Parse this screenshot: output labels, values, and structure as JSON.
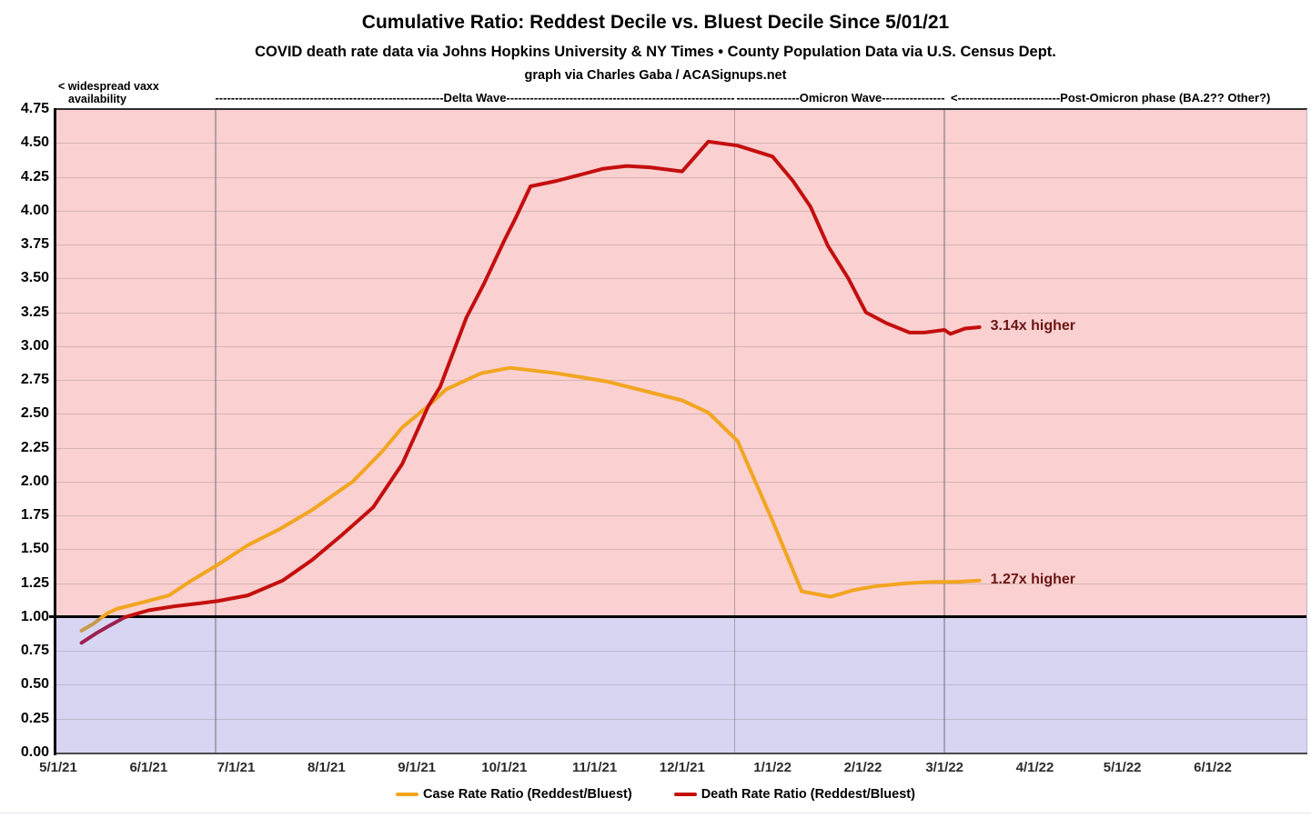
{
  "header": {
    "title": "Cumulative Ratio: Reddest Decile vs. Bluest Decile Since 5/01/21",
    "subtitle": "COVID death rate data via Johns Hopkins University & NY Times • County Population Data via U.S. Census Dept.",
    "credit": "graph via Charles Gaba / ACASignups.net"
  },
  "annotations": {
    "vaxx_line1": "< widespread vaxx",
    "vaxx_line2": "availability",
    "delta_wave": "<----------------------------------------------------------Delta Wave---------------------------------------------------------->",
    "omicron_wave": "<----------------Omicron Wave---------------->",
    "post_omicron": "<--------------------------Post-Omicron phase (BA.2?? Other?)"
  },
  "chart_data": {
    "type": "line",
    "title": "Cumulative Ratio: Reddest Decile vs. Bluest Decile Since 5/01/21",
    "x_range": [
      "5/1/21",
      "6/1/22"
    ],
    "y_range": [
      0,
      4.75
    ],
    "grid": true,
    "unity_value": 1.0,
    "x_ticks": [
      "5/1/21",
      "6/1/21",
      "7/1/21",
      "8/1/21",
      "9/1/21",
      "10/1/21",
      "11/1/21",
      "12/1/21",
      "1/1/22",
      "2/1/22",
      "3/1/22",
      "4/1/22",
      "5/1/22",
      "6/1/22"
    ],
    "y_ticks": [
      "0.00",
      "0.25",
      "0.50",
      "0.75",
      "1.00",
      "1.25",
      "1.50",
      "1.75",
      "2.00",
      "2.25",
      "2.50",
      "2.75",
      "3.00",
      "3.25",
      "3.50",
      "3.75",
      "4.00",
      "4.25",
      "4.50",
      "4.75"
    ],
    "bands": {
      "above_one_color": "#FAD0D0",
      "below_one_color": "#D8D5F2"
    },
    "phase_dividers": [
      "2021-06-24",
      "2021-12-19",
      "2022-03-01"
    ],
    "legend_position": "bottom",
    "series": [
      {
        "name": "Case Rate Ratio (Reddest/Bluest)",
        "color": "#F2A51F",
        "color_below_one": "#C89A4A",
        "end_label": "1.27x higher",
        "points": [
          [
            "2021-05-09",
            0.9
          ],
          [
            "2021-05-13",
            0.95
          ],
          [
            "2021-05-18",
            1.03
          ],
          [
            "2021-05-21",
            1.06
          ],
          [
            "2021-06-01",
            1.12
          ],
          [
            "2021-06-08",
            1.16
          ],
          [
            "2021-06-15",
            1.26
          ],
          [
            "2021-06-25",
            1.39
          ],
          [
            "2021-07-05",
            1.53
          ],
          [
            "2021-07-16",
            1.65
          ],
          [
            "2021-07-27",
            1.79
          ],
          [
            "2021-08-10",
            2.0
          ],
          [
            "2021-08-20",
            2.22
          ],
          [
            "2021-08-27",
            2.4
          ],
          [
            "2021-09-05",
            2.56
          ],
          [
            "2021-09-11",
            2.68
          ],
          [
            "2021-09-23",
            2.8
          ],
          [
            "2021-10-03",
            2.84
          ],
          [
            "2021-10-19",
            2.8
          ],
          [
            "2021-11-05",
            2.74
          ],
          [
            "2021-11-18",
            2.67
          ],
          [
            "2021-12-01",
            2.6
          ],
          [
            "2021-12-10",
            2.51
          ],
          [
            "2021-12-20",
            2.3
          ],
          [
            "2022-01-01",
            1.71
          ],
          [
            "2022-01-11",
            1.19
          ],
          [
            "2022-01-21",
            1.15
          ],
          [
            "2022-01-29",
            1.2
          ],
          [
            "2022-02-06",
            1.23
          ],
          [
            "2022-02-16",
            1.25
          ],
          [
            "2022-02-25",
            1.26
          ],
          [
            "2022-03-05",
            1.26
          ],
          [
            "2022-03-13",
            1.27
          ]
        ]
      },
      {
        "name": "Death Rate Ratio (Reddest/Bluest)",
        "color": "#C40E0E",
        "color_below_one": "#9C2050",
        "end_label": "3.14x higher",
        "points": [
          [
            "2021-05-09",
            0.81
          ],
          [
            "2021-05-14",
            0.88
          ],
          [
            "2021-05-18",
            0.93
          ],
          [
            "2021-05-24",
            1.0
          ],
          [
            "2021-06-01",
            1.05
          ],
          [
            "2021-06-10",
            1.08
          ],
          [
            "2021-06-18",
            1.1
          ],
          [
            "2021-06-25",
            1.12
          ],
          [
            "2021-07-05",
            1.16
          ],
          [
            "2021-07-17",
            1.27
          ],
          [
            "2021-07-27",
            1.42
          ],
          [
            "2021-08-06",
            1.6
          ],
          [
            "2021-08-17",
            1.81
          ],
          [
            "2021-08-27",
            2.13
          ],
          [
            "2021-09-05",
            2.56
          ],
          [
            "2021-09-09",
            2.7
          ],
          [
            "2021-09-18",
            3.21
          ],
          [
            "2021-09-24",
            3.46
          ],
          [
            "2021-10-01",
            3.78
          ],
          [
            "2021-10-05",
            3.95
          ],
          [
            "2021-10-10",
            4.18
          ],
          [
            "2021-10-19",
            4.22
          ],
          [
            "2021-10-28",
            4.27
          ],
          [
            "2021-11-04",
            4.31
          ],
          [
            "2021-11-12",
            4.33
          ],
          [
            "2021-11-20",
            4.32
          ],
          [
            "2021-12-01",
            4.29
          ],
          [
            "2021-12-10",
            4.51
          ],
          [
            "2021-12-20",
            4.48
          ],
          [
            "2022-01-01",
            4.4
          ],
          [
            "2022-01-08",
            4.22
          ],
          [
            "2022-01-14",
            4.03
          ],
          [
            "2022-01-20",
            3.74
          ],
          [
            "2022-01-27",
            3.5
          ],
          [
            "2022-02-02",
            3.25
          ],
          [
            "2022-02-09",
            3.17
          ],
          [
            "2022-02-17",
            3.1
          ],
          [
            "2022-02-22",
            3.1
          ],
          [
            "2022-03-01",
            3.12
          ],
          [
            "2022-03-03",
            3.09
          ],
          [
            "2022-03-08",
            3.13
          ],
          [
            "2022-03-13",
            3.14
          ]
        ]
      }
    ]
  }
}
